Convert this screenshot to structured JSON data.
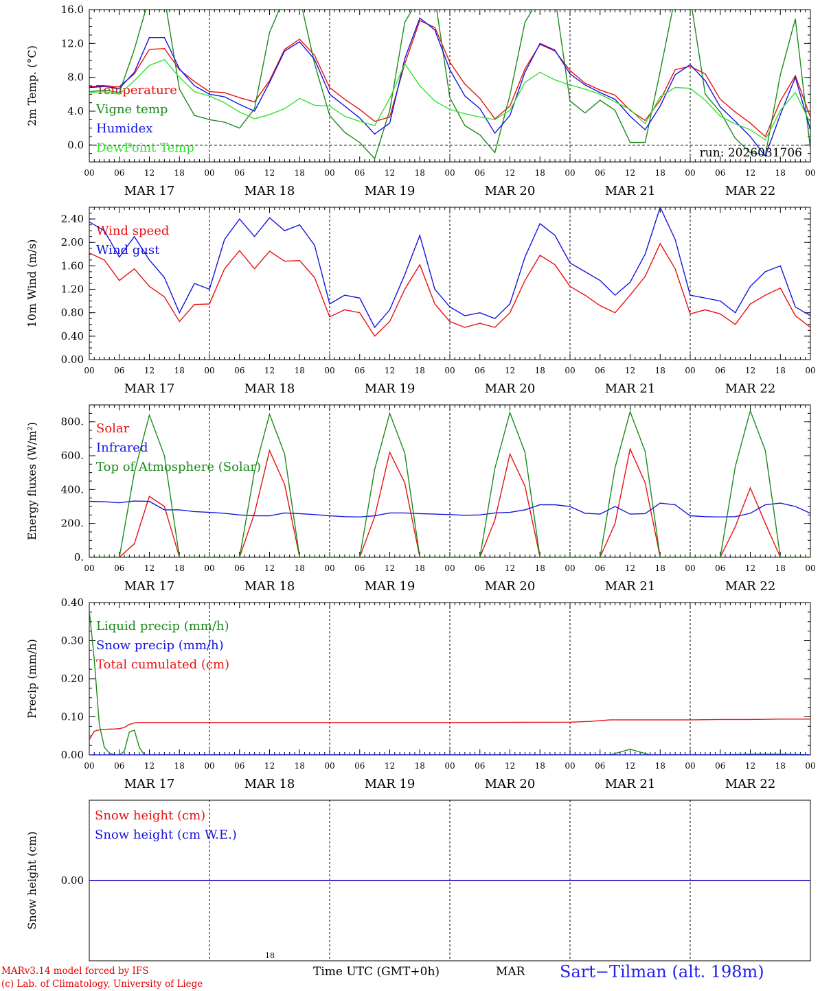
{
  "footer": {
    "model": "MARv3.14 model forced by IFS",
    "credit": "(c) Lab. of Climatology, University of Liege",
    "time_label": "Time UTC (GMT+0h)",
    "month": "MAR",
    "small_label": "18",
    "station": "Sart−Tilman (alt. 198m)"
  },
  "colors": {
    "red": "#e81010",
    "dark_green": "#1a8a1a",
    "blue": "#1414e0",
    "light_green": "#33e033",
    "axis": "#000000"
  },
  "time_axis": {
    "hour_ticks": [
      "00",
      "06",
      "12",
      "18",
      "00",
      "06",
      "12",
      "18",
      "00",
      "06",
      "12",
      "18",
      "00",
      "06",
      "12",
      "18",
      "00",
      "06",
      "12",
      "18",
      "00",
      "06",
      "12",
      "18",
      "00"
    ],
    "days": [
      "MAR 17",
      "MAR 18",
      "MAR 19",
      "MAR 20",
      "MAR 21",
      "MAR 22"
    ],
    "range_hours": [
      0,
      144
    ]
  },
  "chart_data": [
    {
      "type": "line",
      "ylabel": "2m Temp. (°C)",
      "ylim": [
        -2,
        16
      ],
      "yticks": [
        "0.0",
        "4.0",
        "8.0",
        "12.0",
        "16.0"
      ],
      "ytick_values": [
        0,
        4,
        8,
        12,
        16
      ],
      "zero_line": true,
      "annotation": "run: 2026031706",
      "x": [
        0,
        3,
        6,
        9,
        12,
        15,
        18,
        21,
        24,
        27,
        30,
        33,
        36,
        39,
        42,
        45,
        48,
        51,
        54,
        57,
        60,
        63,
        66,
        69,
        72,
        75,
        78,
        81,
        84,
        87,
        90,
        93,
        96,
        99,
        102,
        105,
        108,
        111,
        114,
        117,
        120,
        123,
        126,
        129,
        132,
        135,
        138,
        141,
        144
      ],
      "series": [
        {
          "name": "Temperature",
          "color": "red",
          "values": [
            6.9,
            7.0,
            6.9,
            8.4,
            11.3,
            11.4,
            8.9,
            7.5,
            6.3,
            6.2,
            5.6,
            5.1,
            7.6,
            11.3,
            12.5,
            10.6,
            6.8,
            5.4,
            4.2,
            2.8,
            3.3,
            9.6,
            14.7,
            13.9,
            9.8,
            7.2,
            5.5,
            3.1,
            4.6,
            9.0,
            11.9,
            11.1,
            8.8,
            7.3,
            6.5,
            5.9,
            4.1,
            2.9,
            5.3,
            8.9,
            9.3,
            8.4,
            5.4,
            3.9,
            2.6,
            1.0,
            5.2,
            8.2,
            3.3
          ]
        },
        {
          "name": "Vigne temp",
          "color": "dark_green",
          "values": [
            6.3,
            6.5,
            6.2,
            11.3,
            17.5,
            17.5,
            6.6,
            3.5,
            3.0,
            2.7,
            2.0,
            4.3,
            13.3,
            17.5,
            17.5,
            9.6,
            3.5,
            1.5,
            0.3,
            -1.6,
            4.1,
            14.5,
            17.5,
            17.5,
            5.6,
            2.3,
            1.2,
            -0.9,
            5.9,
            14.5,
            17.5,
            17.5,
            5.2,
            3.8,
            5.3,
            4.1,
            0.3,
            0.3,
            8.7,
            17.5,
            17.5,
            6.0,
            3.9,
            0.8,
            -0.9,
            -1.2,
            8.3,
            14.9,
            -0.5
          ]
        },
        {
          "name": "Humidex",
          "color": "blue",
          "values": [
            6.8,
            6.9,
            6.7,
            8.6,
            12.7,
            12.7,
            9.0,
            7.0,
            6.0,
            5.7,
            4.8,
            4.0,
            7.4,
            11.1,
            12.2,
            10.1,
            6.0,
            4.6,
            3.2,
            1.3,
            2.6,
            10.2,
            15.0,
            13.6,
            8.9,
            5.8,
            4.3,
            1.4,
            3.5,
            8.6,
            12.0,
            11.2,
            8.4,
            7.1,
            6.2,
            5.4,
            3.4,
            1.8,
            4.6,
            8.3,
            9.5,
            7.6,
            4.5,
            2.8,
            1.0,
            -1.3,
            3.6,
            8.0,
            1.8
          ]
        },
        {
          "name": "DewPoint Temp",
          "color": "light_green",
          "values": [
            6.2,
            6.3,
            6.0,
            7.6,
            9.4,
            10.1,
            8.0,
            6.3,
            5.8,
            5.0,
            3.9,
            3.1,
            3.6,
            4.3,
            5.5,
            4.7,
            4.6,
            3.4,
            2.8,
            2.3,
            5.5,
            9.6,
            7.0,
            5.2,
            4.2,
            3.7,
            3.3,
            3.0,
            4.1,
            7.4,
            8.6,
            7.7,
            7.1,
            6.6,
            6.0,
            5.1,
            4.2,
            2.5,
            5.7,
            6.8,
            6.7,
            5.3,
            3.4,
            2.5,
            1.8,
            0.6,
            4.1,
            6.2,
            2.6
          ]
        }
      ]
    },
    {
      "type": "line",
      "ylabel": "10m Wind (m/s)",
      "ylim": [
        0,
        2.6
      ],
      "yticks": [
        "0.00",
        "0.40",
        "0.80",
        "1.20",
        "1.60",
        "2.00",
        "2.40"
      ],
      "ytick_values": [
        0,
        0.4,
        0.8,
        1.2,
        1.6,
        2.0,
        2.4
      ],
      "x": [
        0,
        3,
        6,
        9,
        12,
        15,
        18,
        21,
        24,
        27,
        30,
        33,
        36,
        39,
        42,
        45,
        48,
        51,
        54,
        57,
        60,
        63,
        66,
        69,
        72,
        75,
        78,
        81,
        84,
        87,
        90,
        93,
        96,
        99,
        102,
        105,
        108,
        111,
        114,
        117,
        120,
        123,
        126,
        129,
        132,
        135,
        138,
        141,
        144
      ],
      "series": [
        {
          "name": "Wind speed",
          "color": "red",
          "values": [
            1.82,
            1.7,
            1.35,
            1.55,
            1.25,
            1.07,
            0.65,
            0.94,
            0.95,
            1.55,
            1.86,
            1.55,
            1.85,
            1.68,
            1.69,
            1.4,
            0.73,
            0.85,
            0.8,
            0.4,
            0.65,
            1.2,
            1.62,
            0.95,
            0.65,
            0.55,
            0.62,
            0.55,
            0.8,
            1.35,
            1.78,
            1.62,
            1.25,
            1.1,
            0.92,
            0.8,
            1.1,
            1.42,
            1.98,
            1.55,
            0.78,
            0.85,
            0.78,
            0.6,
            0.95,
            1.1,
            1.22,
            0.75,
            0.55
          ]
        },
        {
          "name": "Wind gust",
          "color": "blue",
          "values": [
            2.35,
            2.2,
            1.75,
            2.1,
            1.7,
            1.4,
            0.8,
            1.3,
            1.2,
            2.05,
            2.4,
            2.1,
            2.42,
            2.2,
            2.3,
            1.95,
            0.95,
            1.1,
            1.05,
            0.55,
            0.85,
            1.45,
            2.12,
            1.2,
            0.9,
            0.75,
            0.8,
            0.7,
            0.95,
            1.75,
            2.32,
            2.12,
            1.65,
            1.5,
            1.35,
            1.1,
            1.32,
            1.8,
            2.6,
            2.05,
            1.1,
            1.05,
            1.0,
            0.8,
            1.25,
            1.5,
            1.6,
            0.9,
            0.75
          ]
        }
      ]
    },
    {
      "type": "line",
      "ylabel": "Energy fluxes (W/m²)",
      "ylim": [
        0,
        900
      ],
      "yticks": [
        "0.",
        "200.",
        "400.",
        "600.",
        "800."
      ],
      "ytick_values": [
        0,
        200,
        400,
        600,
        800
      ],
      "x": [
        0,
        3,
        6,
        9,
        12,
        15,
        18,
        21,
        24,
        27,
        30,
        33,
        36,
        39,
        42,
        45,
        48,
        51,
        54,
        57,
        60,
        63,
        66,
        69,
        72,
        75,
        78,
        81,
        84,
        87,
        90,
        93,
        96,
        99,
        102,
        105,
        108,
        111,
        114,
        117,
        120,
        123,
        126,
        129,
        132,
        135,
        138,
        141,
        144
      ],
      "series": [
        {
          "name": "Solar",
          "color": "red",
          "values": [
            0,
            0,
            0,
            80,
            360,
            300,
            0,
            0,
            0,
            0,
            0,
            260,
            630,
            430,
            0,
            0,
            0,
            0,
            0,
            240,
            620,
            440,
            0,
            0,
            0,
            0,
            0,
            220,
            610,
            420,
            0,
            0,
            0,
            0,
            0,
            200,
            640,
            440,
            0,
            0,
            0,
            0,
            0,
            180,
            410,
            200,
            0,
            0,
            0
          ]
        },
        {
          "name": "Infrared",
          "color": "blue",
          "values": [
            330,
            328,
            322,
            332,
            330,
            280,
            280,
            270,
            265,
            260,
            250,
            245,
            245,
            262,
            258,
            252,
            245,
            240,
            238,
            245,
            262,
            262,
            258,
            255,
            252,
            248,
            250,
            262,
            265,
            280,
            310,
            310,
            300,
            260,
            255,
            300,
            255,
            258,
            320,
            310,
            245,
            240,
            238,
            240,
            260,
            310,
            320,
            300,
            260
          ]
        },
        {
          "name": "Top of Atmosphere (Solar)",
          "color": "dark_green",
          "values": [
            0,
            0,
            0,
            500,
            840,
            600,
            0,
            0,
            0,
            0,
            0,
            510,
            845,
            610,
            0,
            0,
            0,
            0,
            0,
            520,
            850,
            615,
            0,
            0,
            0,
            0,
            0,
            525,
            855,
            620,
            0,
            0,
            0,
            0,
            0,
            530,
            860,
            625,
            0,
            0,
            0,
            0,
            0,
            535,
            865,
            630,
            0,
            0,
            0
          ]
        }
      ]
    },
    {
      "type": "line",
      "ylabel": "Precip (mm/h)",
      "ylim": [
        0,
        0.4
      ],
      "yticks": [
        "0.00",
        "0.10",
        "0.20",
        "0.30",
        "0.40"
      ],
      "ytick_values": [
        0,
        0.1,
        0.2,
        0.3,
        0.4
      ],
      "x": [
        0,
        1,
        2,
        3,
        4,
        5,
        6,
        7,
        8,
        9,
        10,
        11,
        12,
        18,
        24,
        48,
        72,
        96,
        100,
        104,
        108,
        112,
        116,
        120,
        126,
        132,
        138,
        144
      ],
      "series": [
        {
          "name": "Liquid precip (mm/h)",
          "color": "dark_green",
          "values": [
            0.38,
            0.25,
            0.08,
            0.02,
            0.005,
            0,
            0,
            0.01,
            0.06,
            0.065,
            0.02,
            0,
            0,
            0,
            0,
            0,
            0,
            0,
            0,
            0,
            0.015,
            0,
            0,
            0,
            0,
            0.002,
            0.002,
            0
          ]
        },
        {
          "name": "Snow precip (mm/h)",
          "color": "blue",
          "values": [
            0,
            0,
            0,
            0,
            0,
            0,
            0,
            0,
            0,
            0,
            0,
            0,
            0,
            0,
            0,
            0,
            0,
            0,
            0,
            0,
            0,
            0,
            0,
            0,
            0,
            0,
            0,
            0
          ]
        },
        {
          "name": "Total cumulated (cm)",
          "color": "red",
          "values": [
            0.04,
            0.062,
            0.066,
            0.067,
            0.068,
            0.068,
            0.069,
            0.072,
            0.08,
            0.084,
            0.085,
            0.085,
            0.085,
            0.085,
            0.085,
            0.085,
            0.085,
            0.086,
            0.088,
            0.092,
            0.092,
            0.092,
            0.092,
            0.092,
            0.093,
            0.093,
            0.094,
            0.094
          ]
        }
      ]
    },
    {
      "type": "line",
      "ylabel": "Snow height (cm)",
      "ylim": [
        -1,
        1
      ],
      "yticks": [
        "0.00"
      ],
      "ytick_values": [
        0
      ],
      "x": [
        0,
        144
      ],
      "series": [
        {
          "name": "Snow height (cm)",
          "color": "red",
          "values": [
            0,
            0
          ]
        },
        {
          "name": "Snow height (cm W.E.)",
          "color": "blue",
          "values": [
            0,
            0
          ]
        }
      ]
    }
  ]
}
